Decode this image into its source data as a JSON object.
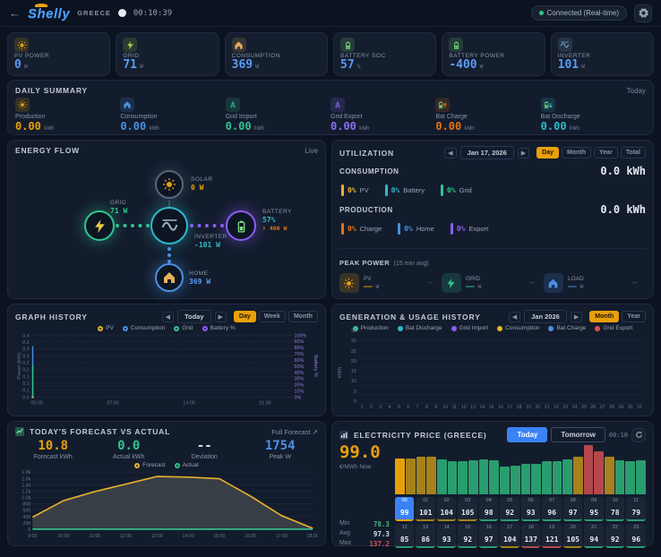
{
  "topbar": {
    "logo": "Shelly",
    "region": "GREECE",
    "time": "00:10:39",
    "status": "Connected (Real-time)"
  },
  "stats": [
    {
      "label": "PV POWER",
      "value": "0",
      "unit": "W",
      "icon": "sun",
      "accent": "#e8a00a"
    },
    {
      "label": "GRID",
      "value": "71",
      "unit": "W",
      "icon": "bolt",
      "accent": "#a8c94a"
    },
    {
      "label": "CONSUMPTION",
      "value": "369",
      "unit": "W",
      "icon": "home",
      "accent": "#e8a85a"
    },
    {
      "label": "BATTERY SOC",
      "value": "57",
      "unit": "%",
      "icon": "battery",
      "accent": "#7ee081"
    },
    {
      "label": "BATTERY POWER",
      "value": "-400",
      "unit": "W",
      "icon": "battery",
      "accent": "#7ee081"
    },
    {
      "label": "INVERTER",
      "value": "101",
      "unit": "W",
      "icon": "inverter",
      "accent": "#7ba6c9"
    }
  ],
  "daily_summary": {
    "title": "DAILY SUMMARY",
    "period": "Today",
    "items": [
      {
        "label": "Production",
        "value": "0.00",
        "unit": "kWh",
        "color": "#e8a00a",
        "icon": "sun"
      },
      {
        "label": "Consumption",
        "value": "0.00",
        "unit": "kWh",
        "color": "#4a90e2",
        "icon": "home"
      },
      {
        "label": "Grid Import",
        "value": "0.00",
        "unit": "kWh",
        "color": "#31c48d",
        "icon": "tower"
      },
      {
        "label": "Grid Export",
        "value": "0.00",
        "unit": "kWh",
        "color": "#8b6ef6",
        "icon": "tower"
      },
      {
        "label": "Bat Charge",
        "value": "0.00",
        "unit": "kWh",
        "color": "#e8720a",
        "icon": "battery-up"
      },
      {
        "label": "Bat Discharge",
        "value": "0.00",
        "unit": "kWh",
        "color": "#2fb9c9",
        "icon": "battery-down"
      }
    ]
  },
  "energy_flow": {
    "title": "ENERGY FLOW",
    "live": "Live",
    "nodes": {
      "solar": {
        "name": "SOLAR",
        "value": "0 W",
        "color": "#e8a00a",
        "ring": "#5a6478"
      },
      "grid": {
        "name": "GRID",
        "value": "71 W",
        "color": "#31c48d",
        "ring": "#31c48d"
      },
      "inverter": {
        "name": "INVERTER",
        "value": "-101 W",
        "color": "#2fb9c9",
        "ring": "#2fb9c9"
      },
      "battery": {
        "name": "BATTERY",
        "value": "57%",
        "flow": "↑ 400 W",
        "flow_color": "#e8720a",
        "color": "#2fb9c9",
        "ring": "#8b5cf6"
      },
      "home": {
        "name": "HOME",
        "value": "369 W",
        "color": "#5b9bf8",
        "ring": "#4a90e2"
      }
    }
  },
  "utilization": {
    "title": "UTILIZATION",
    "date": "Jan 17, 2026",
    "prev": "◀",
    "next": "▶",
    "tabs": [
      "Day",
      "Month",
      "Year",
      "Total"
    ],
    "active_tab": 0,
    "consumption": {
      "label": "CONSUMPTION",
      "value": "0.0 kWh",
      "legend": [
        {
          "pct": "0%",
          "name": "PV",
          "color": "#e8b02a"
        },
        {
          "pct": "0%",
          "name": "Battery",
          "color": "#2fb9c9"
        },
        {
          "pct": "0%",
          "name": "Grid",
          "color": "#31c48d"
        }
      ]
    },
    "production": {
      "label": "PRODUCTION",
      "value": "0.0 kWh",
      "legend": [
        {
          "pct": "0%",
          "name": "Charge",
          "color": "#e8720a"
        },
        {
          "pct": "0%",
          "name": "Home",
          "color": "#4a90e2"
        },
        {
          "pct": "0%",
          "name": "Export",
          "color": "#8b5cf6"
        }
      ]
    },
    "peak": {
      "title": "PEAK POWER",
      "subtitle": "(15 min avg)",
      "items": [
        {
          "name": "PV",
          "icon": "sun",
          "color": "#e8a00a",
          "value": "——",
          "unit": "W",
          "time": "--"
        },
        {
          "name": "GRID",
          "icon": "bolt",
          "color": "#31c48d",
          "value": "——",
          "unit": "W",
          "time": "--"
        },
        {
          "name": "LOAD",
          "icon": "home",
          "color": "#4a90e2",
          "value": "——",
          "unit": "W",
          "time": "--"
        }
      ]
    }
  },
  "graph_history": {
    "title": "GRAPH HISTORY",
    "nav": "Today",
    "prev": "◀",
    "next": "▶",
    "tabs": [
      "Day",
      "Week",
      "Month"
    ],
    "active_tab": 0
  },
  "generation_history": {
    "title": "GENERATION & USAGE HISTORY",
    "nav": "Jan 2026",
    "prev": "◀",
    "next": "▶",
    "tabs": [
      "Month",
      "Year"
    ],
    "active_tab": 0
  },
  "forecast": {
    "title": "TODAY'S FORECAST VS ACTUAL",
    "link": "Full Forecast ↗",
    "stats": [
      {
        "value": "10.8",
        "label": "Forecast kWh",
        "color": "#e8a00a"
      },
      {
        "value": "0.0",
        "label": "Actual kWh",
        "color": "#31c48d"
      },
      {
        "value": "--",
        "label": "Deviation",
        "color": "#d7dde6"
      },
      {
        "value": "1754",
        "label": "Peak W",
        "color": "#4a90e2"
      }
    ],
    "legend": [
      {
        "name": "Forecast",
        "color": "#e8b02a"
      },
      {
        "name": "Actual",
        "color": "#31c48d"
      }
    ]
  },
  "price": {
    "title": "ELECTRICITY PRICE (GREECE)",
    "tabs": [
      "Today",
      "Tomorrow"
    ],
    "active_tab": 0,
    "time": "00:10",
    "now": "99.0",
    "now_unit": "€/MWh Now",
    "min_label": "Min",
    "avg_label": "Avg",
    "max_label": "Max",
    "min": "78.3",
    "avg": "97.3",
    "max": "137.2"
  },
  "chart_data": [
    {
      "id": "graph_history",
      "type": "line",
      "title": "GRAPH HISTORY",
      "ylabel_left": "Power (kW)",
      "ylabel_right": "Battery %",
      "x_ticks": [
        "00:00",
        "07:00",
        "14:00",
        "21:00"
      ],
      "x_tick_hours": [
        0,
        7,
        14,
        21
      ],
      "x_range_hours": 24,
      "y_ticks_left": [
        "0.4",
        "0.3",
        "0.3",
        "0.3",
        "0.2",
        "0.2",
        "0.1",
        "0.1",
        "0.1",
        "0.0"
      ],
      "y_ticks_right": [
        "100%",
        "90%",
        "80%",
        "70%",
        "60%",
        "50%",
        "40%",
        "30%",
        "20%",
        "10%",
        "0%"
      ],
      "ylim_left": [
        0,
        0.45
      ],
      "grid": true,
      "legend": [
        {
          "name": "PV",
          "color": "#e8b02a"
        },
        {
          "name": "Consumption",
          "color": "#4a90e2"
        },
        {
          "name": "Grid",
          "color": "#31c48d"
        },
        {
          "name": "Battery %",
          "color": "#8b5cf6"
        }
      ],
      "series": [
        {
          "name": "PV",
          "color": "#e8b02a",
          "spike_at": "00:00",
          "spike_kw": 0
        },
        {
          "name": "Consumption",
          "color": "#4a90e2",
          "spike_at": "00:00",
          "spike_kw": 0.37
        },
        {
          "name": "Grid",
          "color": "#31c48d",
          "spike_at": "00:00",
          "spike_kw": 0.23
        },
        {
          "name": "Battery %",
          "color": "#8b5cf6",
          "spike_at": null,
          "spike_kw": null
        }
      ]
    },
    {
      "id": "generation_history",
      "type": "bar",
      "title": "GENERATION & USAGE HISTORY",
      "ylabel": "kWh",
      "y_ticks": [
        0,
        5,
        10,
        15,
        20,
        25,
        30,
        35
      ],
      "ylim": [
        0,
        35
      ],
      "grid": true,
      "categories": [
        1,
        2,
        3,
        4,
        5,
        6,
        7,
        8,
        9,
        10,
        11,
        12,
        13,
        14,
        15,
        16,
        17,
        18,
        19,
        20,
        21,
        22,
        23,
        24,
        25,
        26,
        27,
        28,
        29,
        30,
        31
      ],
      "stack_groups": [
        [
          "Production",
          "Bat Discharge",
          "Grid Import"
        ],
        [
          "Consumption",
          "Bat Charge",
          "Grid Export"
        ]
      ],
      "series": [
        {
          "name": "Production",
          "color": "#31c48d",
          "values": [
            2,
            3,
            3.5,
            15,
            7,
            13,
            8,
            16,
            22,
            3,
            15.5,
            15,
            15,
            15,
            19,
            19.5,
            0,
            0,
            0,
            0,
            0,
            0,
            0,
            0,
            0,
            0,
            0,
            0,
            0,
            0,
            0
          ]
        },
        {
          "name": "Bat Discharge",
          "color": "#2fb9c9",
          "values": [
            0,
            0.5,
            0,
            1,
            1,
            0,
            0,
            4,
            1,
            5,
            3,
            5,
            5,
            2,
            1,
            1,
            0,
            0,
            0,
            0,
            0,
            0,
            0,
            0,
            0,
            0,
            0,
            0,
            0,
            0,
            0
          ]
        },
        {
          "name": "Grid Import",
          "color": "#8b5cf6",
          "values": [
            1,
            2.5,
            4,
            6,
            17,
            12,
            21.5,
            5,
            8.5,
            8,
            10,
            8.5,
            8.5,
            8,
            6,
            7,
            0,
            0,
            0,
            0,
            0,
            0,
            0,
            0,
            0,
            0,
            0,
            0,
            0,
            0,
            0
          ]
        },
        {
          "name": "Consumption",
          "color": "#e6b422",
          "values": [
            2.5,
            2,
            5,
            17.5,
            20.5,
            19,
            22,
            16.5,
            8.5,
            13.5,
            18.5,
            24.5,
            19,
            15.5,
            19.5,
            17.5,
            0,
            0,
            0,
            0,
            0,
            0,
            0,
            0,
            0,
            0,
            0,
            0,
            0,
            0,
            0
          ]
        },
        {
          "name": "Bat Charge",
          "color": "#4a90e2",
          "values": [
            0,
            0.5,
            0.5,
            2,
            2,
            0,
            0,
            3.5,
            5,
            0.5,
            0,
            0.5,
            7,
            6,
            3.5,
            8,
            0,
            0,
            0,
            0,
            0,
            0,
            0,
            0,
            0,
            0,
            0,
            0,
            0,
            0,
            0
          ]
        },
        {
          "name": "Grid Export",
          "color": "#e05252",
          "values": [
            0,
            0,
            0,
            0,
            0,
            0,
            0,
            0,
            0,
            0,
            0,
            0,
            0,
            0,
            0,
            0,
            0,
            0,
            0,
            0,
            0,
            0,
            0,
            0,
            0,
            0,
            0,
            0,
            0,
            0,
            0
          ]
        }
      ]
    },
    {
      "id": "forecast",
      "type": "area",
      "title": "TODAY'S FORECAST VS ACTUAL",
      "x_ticks": [
        "9:00",
        "10:00",
        "11:00",
        "12:00",
        "13:00",
        "14:00",
        "15:00",
        "16:00",
        "17:00",
        "18:00"
      ],
      "y_ticks": [
        "1.8k",
        "1.6k",
        "1.4k",
        "1.2k",
        "1.0k",
        "800",
        "600",
        "400",
        "200",
        "0"
      ],
      "ylim": [
        0,
        1900
      ],
      "grid": true,
      "series": [
        {
          "name": "Forecast",
          "color": "#e8b02a",
          "fill": "#3f444b",
          "values": [
            400,
            950,
            1250,
            1500,
            1754,
            1730,
            1680,
            1100,
            450,
            30
          ]
        },
        {
          "name": "Actual",
          "color": "#31c48d",
          "fill": null,
          "values": [
            0,
            0,
            0,
            0,
            0,
            0,
            0,
            0,
            0,
            0
          ]
        }
      ]
    },
    {
      "id": "price",
      "type": "bar",
      "title": "ELECTRICITY PRICE (GREECE)",
      "unit": "€/MWh",
      "hours": [
        "00",
        "01",
        "02",
        "03",
        "04",
        "05",
        "06",
        "07",
        "08",
        "09",
        "10",
        "11",
        "12",
        "13",
        "14",
        "15",
        "16",
        "17",
        "18",
        "19",
        "20",
        "21",
        "22",
        "23"
      ],
      "values": [
        99,
        101,
        104,
        105,
        98,
        92,
        93,
        96,
        97,
        95,
        78,
        79,
        85,
        86,
        93,
        92,
        97,
        104,
        137,
        121,
        105,
        94,
        92,
        96
      ],
      "current_hour": 0,
      "min": 78.3,
      "avg": 97.3,
      "max": 137.2,
      "ylim": [
        0,
        140
      ],
      "colors": {
        "low": "#2a9d6e",
        "mid": "#a5821c",
        "high": "#b5484d",
        "current": "#e8a00a"
      },
      "thresholds": {
        "mid_from": 100,
        "high_from": 115
      }
    }
  ]
}
